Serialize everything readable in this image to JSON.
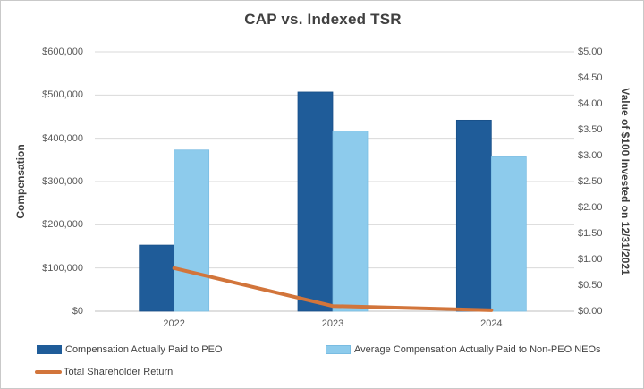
{
  "chart_data": {
    "type": "bar+line combo",
    "title": "CAP vs. Indexed TSR",
    "categories": [
      "2022",
      "2023",
      "2024"
    ],
    "series": [
      {
        "name": "Compensation Actually Paid to PEO",
        "type": "bar",
        "axis": "left",
        "color": "#1F5C99",
        "border_color": "#174E86",
        "values": [
          153000,
          507000,
          442000
        ]
      },
      {
        "name": "Average Compensation Actually Paid to Non-PEO NEOs",
        "type": "bar",
        "axis": "left",
        "color": "#8DCBEC",
        "border_color": "#79BCE2",
        "values": [
          373000,
          417000,
          357000
        ]
      },
      {
        "name": "Total Shareholder Return",
        "type": "line",
        "axis": "right",
        "color": "#D2753B",
        "values": [
          0.83,
          0.1,
          0.02
        ]
      }
    ],
    "left_axis": {
      "label": "Compensation",
      "min": 0,
      "max": 600000,
      "step": 100000,
      "tick_labels": [
        "$0",
        "$100,000",
        "$200,000",
        "$300,000",
        "$400,000",
        "$500,000",
        "$600,000"
      ]
    },
    "right_axis": {
      "label": "Value of $100 Invested on 12/31/2021",
      "min": 0,
      "max": 5,
      "step": 0.5,
      "tick_labels": [
        "$0.00",
        "$0.50",
        "$1.00",
        "$1.50",
        "$2.00",
        "$2.50",
        "$3.00",
        "$3.50",
        "$4.00",
        "$4.50",
        "$5.00"
      ]
    },
    "grid": true,
    "legend_position": "bottom-left two rows"
  },
  "colors": {
    "gridline": "#D9D9D9",
    "baseline": "#BFBFBF",
    "tick_text": "#595959",
    "title_text": "#404040",
    "legend_text": "#404040",
    "frame_border": "#C9C9C9",
    "background": "#FFFFFF"
  }
}
